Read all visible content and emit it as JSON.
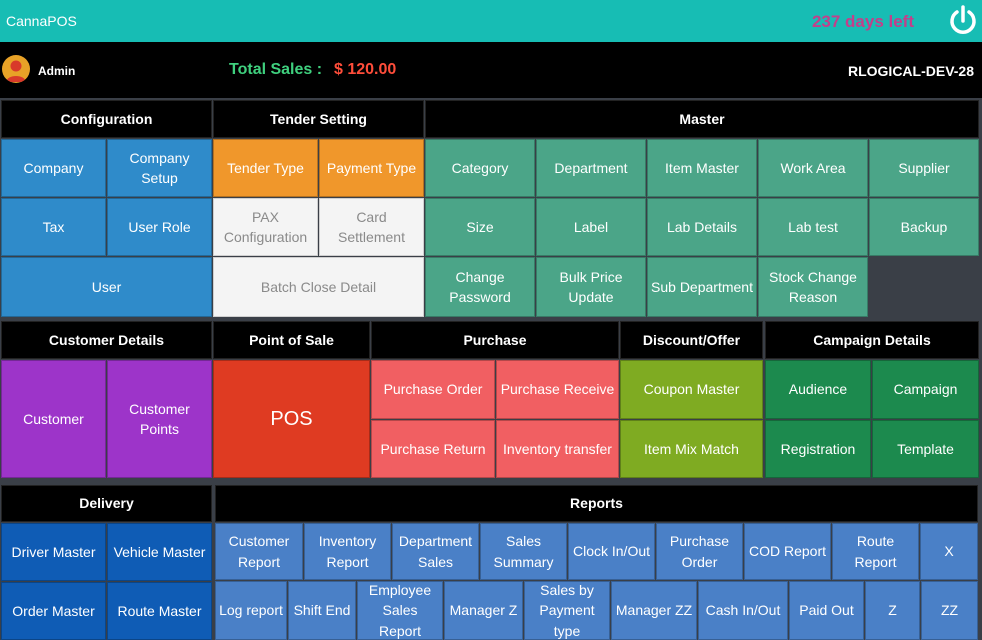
{
  "header": {
    "app_title": "CannaPOS",
    "days_left": "237 days left",
    "power_icon": "power-icon"
  },
  "infobar": {
    "user": "Admin",
    "avatar_icon": "user-avatar-icon",
    "total_sales_label": "Total Sales :",
    "total_sales_value": "$ 120.00",
    "terminal_id": "RLOGICAL-DEV-28"
  },
  "sections": {
    "configuration": "Configuration",
    "tender_setting": "Tender Setting",
    "master": "Master",
    "customer_details": "Customer Details",
    "point_of_sale": "Point of Sale",
    "purchase": "Purchase",
    "discount_offer": "Discount/Offer",
    "campaign_details": "Campaign Details",
    "delivery": "Delivery",
    "reports": "Reports"
  },
  "configuration": {
    "company": "Company",
    "company_setup": "Company Setup",
    "tax": "Tax",
    "user_role": "User Role",
    "user": "User"
  },
  "tender": {
    "tender_type": "Tender Type",
    "payment_type": "Payment Type",
    "pax_configuration": "PAX Configuration",
    "card_settlement": "Card Settlement",
    "batch_close_detail": "Batch Close Detail"
  },
  "master": {
    "category": "Category",
    "department": "Department",
    "item_master": "Item Master",
    "work_area": "Work Area",
    "supplier": "Supplier",
    "size": "Size",
    "label": "Label",
    "lab_details": "Lab Details",
    "lab_test": "Lab test",
    "backup": "Backup",
    "change_password": "Change Password",
    "bulk_price_update": "Bulk Price Update",
    "sub_department": "Sub Department",
    "stock_change_reason": "Stock Change Reason"
  },
  "customer": {
    "customer": "Customer",
    "customer_points": "Customer Points"
  },
  "pos": {
    "pos": "POS"
  },
  "purchase": {
    "purchase_order": "Purchase Order",
    "purchase_receive": "Purchase Receive",
    "purchase_return": "Purchase Return",
    "inventory_transfer": "Inventory transfer"
  },
  "discount": {
    "coupon_master": "Coupon Master",
    "item_mix_match": "Item Mix Match"
  },
  "campaign": {
    "audience": "Audience",
    "campaign": "Campaign",
    "registration": "Registration",
    "template": "Template"
  },
  "delivery": {
    "driver_master": "Driver Master",
    "vehicle_master": "Vehicle Master",
    "order_master": "Order Master",
    "route_master": "Route Master"
  },
  "reports": {
    "customer_report": "Customer Report",
    "inventory_report": "Inventory Report",
    "department_sales": "Department Sales",
    "sales_summary": "Sales Summary",
    "clock_in_out": "Clock In/Out",
    "purchase_order": "Purchase Order",
    "cod_report": "COD Report",
    "route_report": "Route Report",
    "x": "X",
    "log_report": "Log report",
    "shift_end": "Shift End",
    "employee_sales_report": "Employee Sales Report",
    "manager_z": "Manager Z",
    "sales_by_payment_type": "Sales by Payment type",
    "manager_zz": "Manager ZZ",
    "cash_in_out": "Cash In/Out",
    "paid_out": "Paid Out",
    "z": "Z",
    "zz": "ZZ"
  },
  "colors": {
    "topbar": "#17bdb4",
    "days_left": "#c2408b",
    "total_label": "#3fd07e",
    "total_value": "#ff4d3a",
    "config_blue": "#2f8bca",
    "tender_orange": "#f0972b",
    "master_teal": "#4ba588",
    "customer_purple": "#9d34c9",
    "pos_red": "#df3b22",
    "purchase_salmon": "#f15f62",
    "discount_olive": "#7fab22",
    "campaign_green": "#1c8a4e",
    "delivery_navy": "#0f5cb5",
    "reports_blue": "#4a80c7"
  }
}
